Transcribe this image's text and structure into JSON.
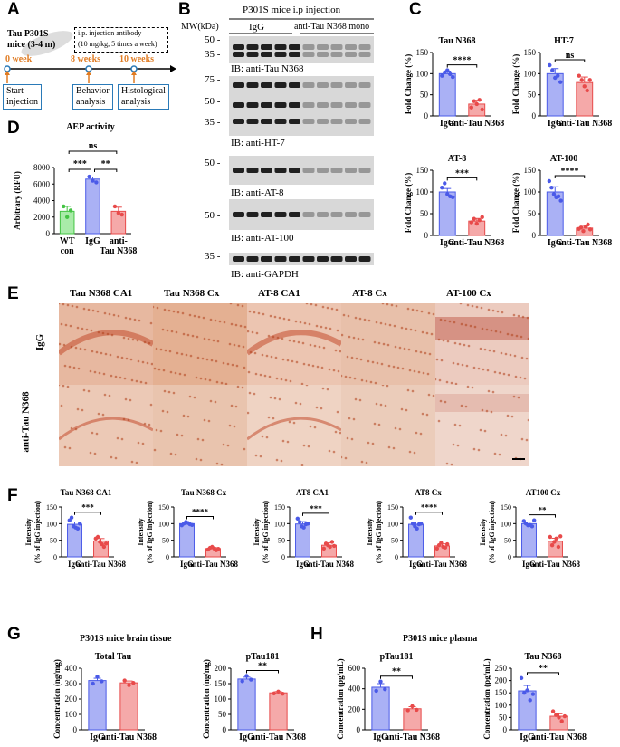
{
  "panel_labels": {
    "a": "A",
    "b": "B",
    "c": "C",
    "d": "D",
    "e": "E",
    "f": "F",
    "g": "G",
    "h": "H"
  },
  "panelA": {
    "mouse_label": "Tau P301S\nmice (3-4 m)",
    "injection_box": "i.p. injection antibody\n(10 mg/kg, 5 times a week)",
    "times": [
      "0 week",
      "8 weeks",
      "10 weeks"
    ],
    "boxes": [
      "Start\ninjection",
      "Behavior\nanalysis",
      "Histological\nanalysis"
    ],
    "color": "#e07b22"
  },
  "panelB": {
    "title": "P301S mice i.p injection",
    "mw_label": "MW(kDa)",
    "groups": [
      "IgG",
      "anti-Tau N368 mono"
    ],
    "blots": [
      {
        "ib": "IB: anti-Tau N368",
        "markers": [
          "50",
          "35"
        ]
      },
      {
        "ib": "IB: anti-HT-7",
        "markers": [
          "75",
          "50",
          "35"
        ]
      },
      {
        "ib": "IB: anti-AT-8",
        "markers": [
          "50"
        ]
      },
      {
        "ib": "IB: anti-AT-100",
        "markers": [
          "50"
        ]
      },
      {
        "ib": "IB: anti-GAPDH",
        "markers": [
          "35"
        ]
      }
    ]
  },
  "colors": {
    "igg": "#4a5ae8",
    "anti": "#e84a4a",
    "wt": "#44c444",
    "igg_fill": "#aab1f5",
    "anti_fill": "#f5a9a9",
    "wt_fill": "#a9eba9"
  },
  "panelE": {
    "columns": [
      "Tau N368 CA1",
      "Tau N368 Cx",
      "AT-8 CA1",
      "AT-8 Cx",
      "AT-100 Cx"
    ],
    "rows": [
      "IgG",
      "anti-Tau N368"
    ]
  },
  "supertitles": {
    "g": "P301S mice brain tissue",
    "h": "P301S mice plasma"
  },
  "chart_data": [
    {
      "id": "c_tau_n368",
      "type": "bar",
      "title": "Tau N368",
      "ylabel": "Fold Change (%)",
      "categories": [
        "IgG",
        "anti-Tau N368"
      ],
      "values": [
        100,
        28
      ],
      "errors": [
        6,
        9
      ],
      "points": [
        [
          95,
          103,
          108,
          99,
          92
        ],
        [
          20,
          35,
          28,
          38,
          15
        ]
      ],
      "ylim": [
        0,
        150
      ],
      "yticks": [
        0,
        50,
        100,
        150
      ],
      "sig": "****"
    },
    {
      "id": "c_ht7",
      "type": "bar",
      "title": "HT-7",
      "ylabel": "Fold Change (%)",
      "categories": [
        "IgG",
        "anti-Tau N368"
      ],
      "values": [
        100,
        79
      ],
      "errors": [
        12,
        13
      ],
      "points": [
        [
          120,
          108,
          90,
          95,
          80
        ],
        [
          95,
          85,
          70,
          60,
          85
        ]
      ],
      "ylim": [
        0,
        150
      ],
      "yticks": [
        0,
        50,
        100,
        150
      ],
      "sig": "ns"
    },
    {
      "id": "c_at8",
      "type": "bar",
      "title": "AT-8",
      "ylabel": "Fold Change (%)",
      "categories": [
        "IgG",
        "anti-Tau N368"
      ],
      "values": [
        100,
        33
      ],
      "errors": [
        8,
        6
      ],
      "points": [
        [
          110,
          120,
          95,
          90,
          88
        ],
        [
          30,
          38,
          27,
          35,
          42
        ]
      ],
      "ylim": [
        0,
        150
      ],
      "yticks": [
        0,
        50,
        100,
        150
      ],
      "sig": "***"
    },
    {
      "id": "c_at100",
      "type": "bar",
      "title": "AT-100",
      "ylabel": "Fold Change (%)",
      "categories": [
        "IgG",
        "anti-Tau N368"
      ],
      "values": [
        100,
        17
      ],
      "errors": [
        12,
        4
      ],
      "points": [
        [
          125,
          110,
          95,
          88,
          90,
          80
        ],
        [
          15,
          18,
          10,
          20,
          25,
          14
        ]
      ],
      "ylim": [
        0,
        150
      ],
      "yticks": [
        0,
        50,
        100,
        150
      ],
      "sig": "****"
    },
    {
      "id": "d_aep",
      "type": "bar",
      "title": "AEP activity",
      "ylabel": "Arbitrary (RFU)",
      "categories": [
        "WT\ncon",
        "IgG",
        "anti-\nTau N368"
      ],
      "values": [
        2700,
        6600,
        2700
      ],
      "errors": [
        600,
        250,
        500
      ],
      "points": [
        [
          3300,
          2000,
          2800
        ],
        [
          6900,
          6400,
          6200
        ],
        [
          3300,
          2500,
          2300
        ]
      ],
      "ylim": [
        0,
        8000
      ],
      "yticks": [
        0,
        2000,
        4000,
        6000,
        8000
      ],
      "sigs": [
        {
          "a": 0,
          "b": 1,
          "t": "***"
        },
        {
          "a": 1,
          "b": 2,
          "t": "**"
        },
        {
          "a": 0,
          "b": 2,
          "t": "ns"
        }
      ]
    },
    {
      "id": "f1",
      "type": "bar",
      "title": "Tau N368 CA1",
      "ylabel": "Intensity\n(% of IgG injection)",
      "categories": [
        "IgG",
        "anti-Tau N368"
      ],
      "values": [
        98,
        48
      ],
      "errors": [
        7,
        7
      ],
      "points": [
        [
          110,
          118,
          92,
          88,
          85,
          100
        ],
        [
          55,
          60,
          45,
          38,
          30,
          40
        ]
      ],
      "ylim": [
        0,
        150
      ],
      "yticks": [
        0,
        50,
        100,
        150
      ],
      "sig": "***"
    },
    {
      "id": "f2",
      "type": "bar",
      "title": "Tau N368 Cx",
      "ylabel": "Intensity\n(% of IgG injection)",
      "categories": [
        "IgG",
        "anti-Tau N368"
      ],
      "values": [
        100,
        25
      ],
      "errors": [
        3,
        3
      ],
      "points": [
        [
          95,
          100,
          105,
          102,
          98,
          96
        ],
        [
          22,
          27,
          30,
          25,
          20,
          24
        ]
      ],
      "ylim": [
        0,
        150
      ],
      "yticks": [
        0,
        50,
        100,
        150
      ],
      "sig": "****"
    },
    {
      "id": "f3",
      "type": "bar",
      "title": "AT8 CA1",
      "ylabel": "Intensity\n(% of IgG injection)",
      "categories": [
        "IgG",
        "anti-Tau N368"
      ],
      "values": [
        99,
        35
      ],
      "errors": [
        7,
        7
      ],
      "points": [
        [
          115,
          105,
          92,
          88,
          98,
          100
        ],
        [
          25,
          40,
          35,
          30,
          45,
          33
        ]
      ],
      "ylim": [
        0,
        150
      ],
      "yticks": [
        0,
        50,
        100,
        150
      ],
      "sig": "***"
    },
    {
      "id": "f4",
      "type": "bar",
      "title": "AT8 Cx",
      "ylabel": "Intensity\n(% of IgG injection)",
      "categories": [
        "IgG",
        "anti-Tau N368"
      ],
      "values": [
        98,
        33
      ],
      "errors": [
        7,
        6
      ],
      "points": [
        [
          118,
          100,
          92,
          85,
          98,
          100
        ],
        [
          25,
          35,
          42,
          30,
          28,
          38
        ]
      ],
      "ylim": [
        0,
        150
      ],
      "yticks": [
        0,
        50,
        100,
        150
      ],
      "sig": "****"
    },
    {
      "id": "f5",
      "type": "bar",
      "title": "AT100 Cx",
      "ylabel": "Intensity\n(% of IgG injection)",
      "categories": [
        "IgG",
        "anti-Tau N368"
      ],
      "values": [
        100,
        47
      ],
      "errors": [
        5,
        9
      ],
      "points": [
        [
          108,
          100,
          95,
          96,
          92,
          110
        ],
        [
          60,
          35,
          45,
          55,
          30,
          62
        ]
      ],
      "ylim": [
        0,
        150
      ],
      "yticks": [
        0,
        50,
        100,
        150
      ],
      "sig": "**"
    },
    {
      "id": "g1",
      "type": "bar",
      "title": "Total Tau",
      "ylabel": "Concentration (ng/mg)",
      "categories": [
        "IgG",
        "anti-Tau N368"
      ],
      "values": [
        320,
        305
      ],
      "errors": [
        15,
        12
      ],
      "points": [
        [
          300,
          345,
          315
        ],
        [
          320,
          290,
          305
        ]
      ],
      "ylim": [
        0,
        400
      ],
      "yticks": [
        0,
        100,
        200,
        300,
        400
      ],
      "sig": ""
    },
    {
      "id": "g2",
      "type": "bar",
      "title": "pTau181",
      "ylabel": "Concentration (ng/mg)",
      "categories": [
        "IgG",
        "anti-Tau N368"
      ],
      "values": [
        165,
        120
      ],
      "errors": [
        6,
        4
      ],
      "points": [
        [
          158,
          175,
          163
        ],
        [
          118,
          124,
          117
        ]
      ],
      "ylim": [
        0,
        200
      ],
      "yticks": [
        0,
        50,
        100,
        150,
        200
      ],
      "sig": "**"
    },
    {
      "id": "h1",
      "type": "bar",
      "title": "pTau181",
      "ylabel": "Concentration (pg/mL)",
      "categories": [
        "IgG",
        "anti-Tau N368"
      ],
      "values": [
        415,
        205
      ],
      "errors": [
        35,
        20
      ],
      "points": [
        [
          380,
          470,
          395
        ],
        [
          190,
          230,
          195
        ]
      ],
      "ylim": [
        0,
        600
      ],
      "yticks": [
        0,
        200,
        400,
        600
      ],
      "sig": "**"
    },
    {
      "id": "h2",
      "type": "bar",
      "title": "Tau N368",
      "ylabel": "Concentration (pg/mL)",
      "categories": [
        "IgG",
        "anti-Tau N368"
      ],
      "values": [
        158,
        55
      ],
      "errors": [
        22,
        10
      ],
      "points": [
        [
          210,
          150,
          160,
          120,
          145
        ],
        [
          75,
          60,
          50,
          35,
          55
        ]
      ],
      "ylim": [
        0,
        250
      ],
      "yticks": [
        0,
        50,
        100,
        150,
        200,
        250
      ],
      "sig": "**"
    }
  ]
}
